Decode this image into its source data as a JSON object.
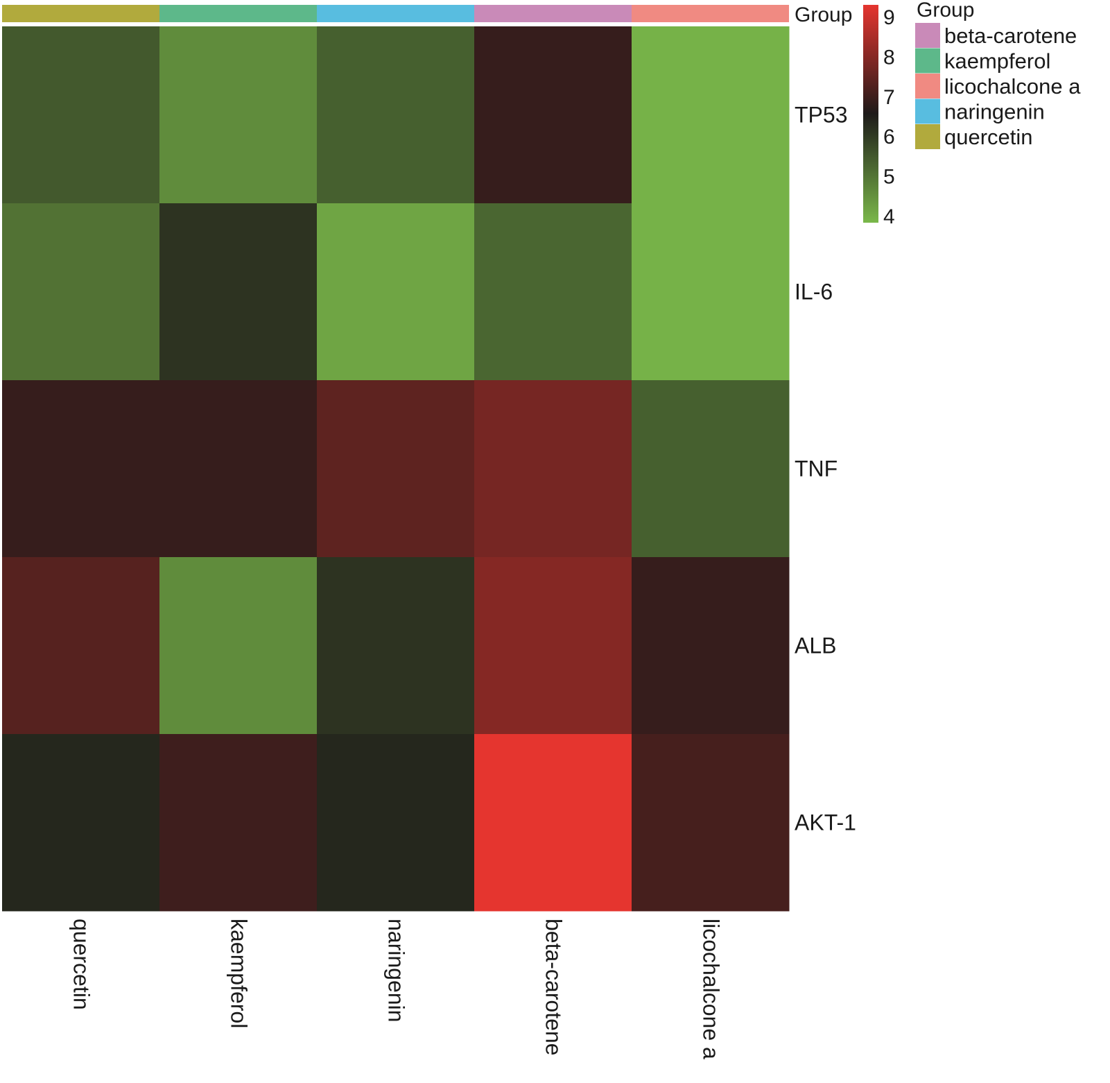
{
  "chart_data": {
    "type": "heatmap",
    "title": "",
    "columns": [
      "quercetin",
      "kaempferol",
      "naringenin",
      "beta-carotene",
      "licochalcone a"
    ],
    "column_groups": [
      "quercetin",
      "kaempferol",
      "naringenin",
      "beta-carotene",
      "licochalcone a"
    ],
    "rows": [
      "TP53",
      "IL-6",
      "TNF",
      "ALB",
      "AKT-1"
    ],
    "values": [
      [
        5.5,
        4.7,
        5.4,
        6.8,
        4.1
      ],
      [
        5.1,
        6.1,
        4.3,
        5.3,
        4.1
      ],
      [
        6.8,
        6.8,
        7.3,
        7.6,
        5.4
      ],
      [
        7.2,
        4.7,
        6.1,
        7.8,
        6.8
      ],
      [
        6.3,
        6.9,
        6.3,
        9.0,
        7.0
      ]
    ],
    "color_scale": {
      "min": 4,
      "mid": 6.5,
      "max": 9,
      "low_color": "#7ab84a",
      "mid_color": "#1e1a19",
      "high_color": "#e5352f",
      "ticks": [
        9,
        8,
        7,
        6,
        5,
        4
      ]
    },
    "group_annotation": {
      "title": "Group",
      "legend_title": "Group",
      "legend": [
        {
          "label": "beta-carotene",
          "color": "#c98ab8"
        },
        {
          "label": "kaempferol",
          "color": "#5db88a"
        },
        {
          "label": "licochalcone a",
          "color": "#f08a82"
        },
        {
          "label": "naringenin",
          "color": "#58bde0"
        },
        {
          "label": "quercetin",
          "color": "#b1aa3d"
        }
      ]
    }
  }
}
